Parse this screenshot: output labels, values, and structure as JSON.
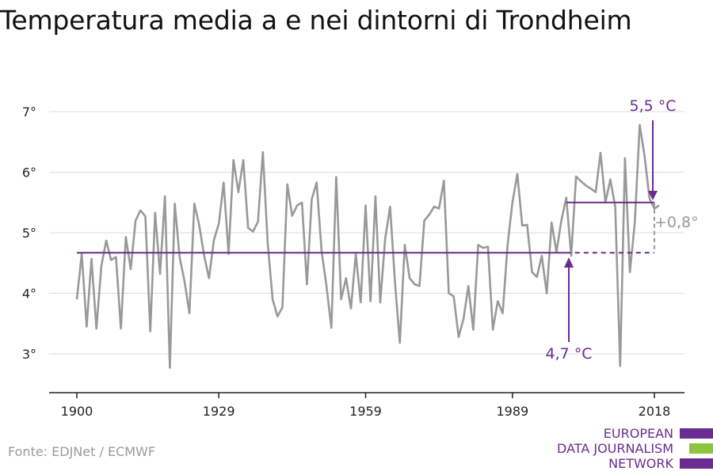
{
  "title": "Temperatura media a e nei dintorni di Trondheim",
  "source": "Fonte: EDJNet / ECMWF",
  "logo": {
    "lines": [
      "EUROPEAN",
      "DATA JOURNALISM",
      "NETWORK"
    ],
    "colors": [
      "#6a2c91",
      "#8cc63f",
      "#6a2c91"
    ]
  },
  "colors": {
    "series": "#999999",
    "accent": "#6a2c91",
    "grid": "#dddddd",
    "axis": "#222222"
  },
  "chart_data": {
    "type": "line",
    "xlim": [
      1900,
      2019
    ],
    "ylim": [
      2.5,
      7.3
    ],
    "xticks": [
      1900,
      1929,
      1959,
      1989,
      2018
    ],
    "yticks": [
      3,
      4,
      5,
      6,
      7
    ],
    "ytick_labels": [
      "3°",
      "4°",
      "5°",
      "6°",
      "7°"
    ],
    "grid": true,
    "series": [
      {
        "x": [
          1900,
          1901,
          1902,
          1903,
          1904,
          1905,
          1906,
          1907,
          1908,
          1909,
          1910,
          1911,
          1912,
          1913,
          1914,
          1915,
          1916,
          1917,
          1918,
          1919,
          1920,
          1921,
          1922,
          1923,
          1924,
          1925,
          1926,
          1927,
          1928,
          1929,
          1930,
          1931,
          1932,
          1933,
          1934,
          1935,
          1936,
          1937,
          1938,
          1939,
          1940,
          1941,
          1942,
          1943,
          1944,
          1945,
          1946,
          1947,
          1948,
          1949,
          1950,
          1951,
          1952,
          1953,
          1954,
          1955,
          1956,
          1957,
          1958,
          1959,
          1960,
          1961,
          1962,
          1963,
          1964,
          1965,
          1966,
          1967,
          1968,
          1969,
          1970,
          1971,
          1972,
          1973,
          1974,
          1975,
          1976,
          1977,
          1978,
          1979,
          1980,
          1981,
          1982,
          1983,
          1984,
          1985,
          1986,
          1987,
          1988,
          1989,
          1990,
          1991,
          1992,
          1993,
          1994,
          1995,
          1996,
          1997,
          1998,
          1999,
          2000,
          2001,
          2002,
          2003,
          2004,
          2005,
          2006,
          2007,
          2008,
          2009,
          2010,
          2011,
          2012,
          2013,
          2014,
          2015,
          2016,
          2017,
          2018,
          2019
        ],
        "y": [
          3.9,
          4.65,
          3.45,
          4.57,
          3.42,
          4.45,
          4.87,
          4.55,
          4.6,
          3.42,
          4.93,
          4.4,
          5.2,
          5.37,
          5.27,
          3.37,
          5.33,
          4.32,
          5.6,
          2.77,
          5.48,
          4.6,
          4.2,
          3.67,
          5.48,
          5.13,
          4.63,
          4.25,
          4.88,
          5.15,
          5.83,
          4.65,
          6.2,
          5.67,
          6.2,
          5.08,
          5.02,
          5.18,
          6.33,
          4.83,
          3.9,
          3.62,
          3.77,
          5.8,
          5.28,
          5.45,
          5.5,
          4.15,
          5.55,
          5.83,
          4.7,
          4.12,
          3.43,
          5.92,
          3.9,
          4.25,
          3.75,
          4.65,
          3.85,
          5.45,
          3.87,
          5.6,
          3.85,
          4.9,
          5.43,
          4.18,
          3.18,
          4.8,
          4.25,
          4.15,
          4.12,
          5.2,
          5.3,
          5.43,
          5.4,
          5.86,
          4.0,
          3.95,
          3.28,
          3.58,
          4.12,
          3.4,
          4.8,
          4.75,
          4.77,
          3.4,
          3.87,
          3.67,
          4.8,
          5.5,
          5.97,
          5.12,
          5.13,
          4.35,
          4.27,
          4.62,
          4.0,
          5.17,
          4.68,
          5.2,
          5.58,
          4.62,
          5.93,
          5.85,
          5.78,
          5.73,
          5.67,
          6.32,
          5.5,
          5.88,
          5.43,
          2.8,
          6.23,
          4.35,
          5.17,
          6.78,
          6.27,
          5.57,
          5.4,
          5.45
        ]
      }
    ],
    "reference_lines": [
      {
        "label": "4,7 °C",
        "y": 4.67,
        "x_start": 1900,
        "x_end": 2018
      },
      {
        "label": "5,5 °C",
        "y": 5.5,
        "x_start": 2000,
        "x_end": 2018
      }
    ],
    "difference_label": "+0,8°"
  }
}
